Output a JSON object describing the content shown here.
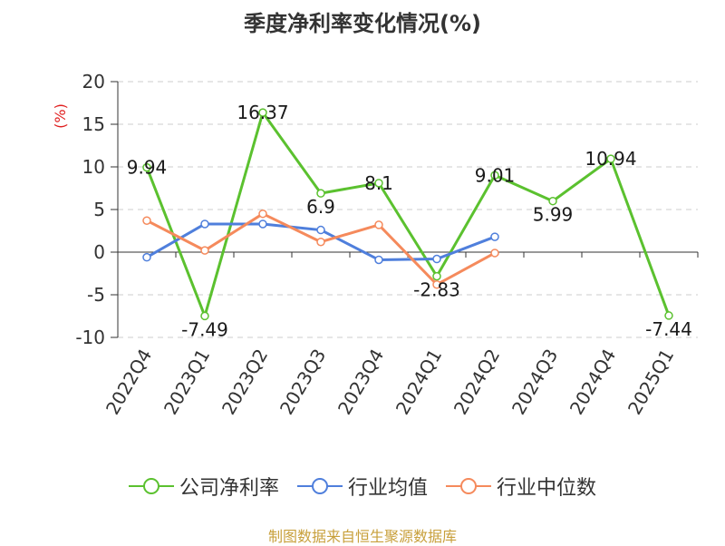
{
  "title": "季度净利率变化情况(%)",
  "source": "制图数据来自恒生聚源数据库",
  "colors": {
    "company": "#5bc12f",
    "industry_avg": "#4f7fdc",
    "industry_median": "#f58a5c",
    "grid": "#cccccc",
    "axis": "#333333"
  },
  "chart_data": {
    "type": "line",
    "title": "季度净利率变化情况(%)",
    "ylabel": "(%)",
    "xlabel": "",
    "ylim": [
      -10,
      20
    ],
    "yticks": [
      20,
      15,
      10,
      5,
      0,
      -5,
      -10
    ],
    "grid": true,
    "legend_position": "bottom",
    "categories": [
      "2022Q4",
      "2023Q1",
      "2023Q2",
      "2023Q3",
      "2023Q4",
      "2024Q1",
      "2024Q2",
      "2024Q3",
      "2024Q4",
      "2025Q1"
    ],
    "series": [
      {
        "name": "公司净利率",
        "color": "#5bc12f",
        "values": [
          9.94,
          -7.49,
          16.37,
          6.9,
          8.1,
          -2.83,
          9.01,
          5.99,
          10.94,
          -7.44
        ],
        "labels": [
          "9.94",
          "-7.49",
          "16.37",
          "6.9",
          "8.1",
          "-2.83",
          "9.01",
          "5.99",
          "10.94",
          "-7.44"
        ]
      },
      {
        "name": "行业均值",
        "color": "#4f7fdc",
        "values": [
          -0.6,
          3.3,
          3.3,
          2.6,
          -0.9,
          -0.8,
          1.8,
          null,
          null,
          null
        ]
      },
      {
        "name": "行业中位数",
        "color": "#f58a5c",
        "values": [
          3.7,
          0.2,
          4.5,
          1.2,
          3.2,
          -3.8,
          -0.1,
          null,
          null,
          null
        ]
      }
    ]
  }
}
